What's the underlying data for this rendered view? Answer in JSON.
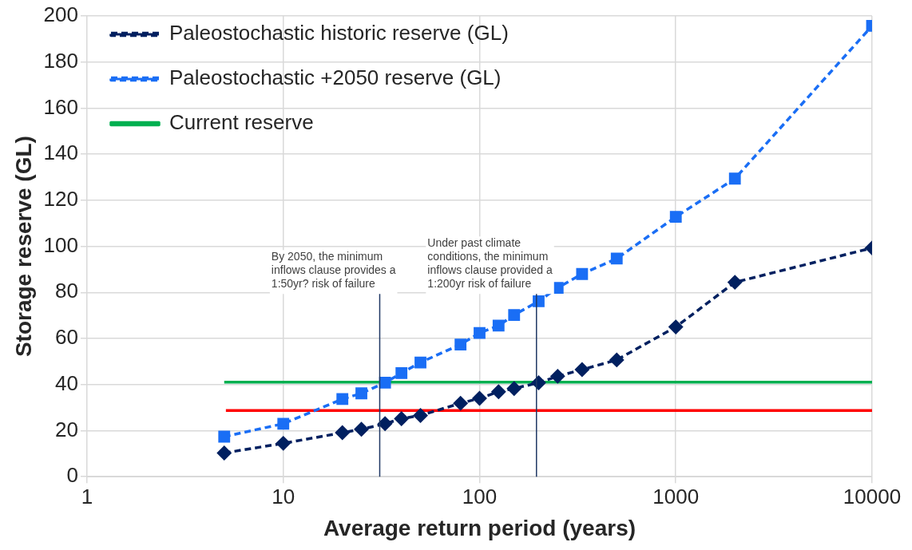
{
  "chart_data": {
    "type": "line",
    "xlabel": "Average return period (years)",
    "ylabel": "Storage reserve (GL)",
    "log": "x",
    "xlim": [
      1,
      10000
    ],
    "xticks": [
      1,
      10,
      100,
      1000,
      10000
    ],
    "ylim": [
      0,
      200
    ],
    "yticks": [
      0,
      20,
      40,
      60,
      80,
      100,
      120,
      140,
      160,
      180,
      200
    ],
    "grid": true,
    "legend": "top left",
    "series": [
      {
        "name": "Paleostochastic historic reserve (GL)",
        "color": "#002060",
        "marker": "diamond",
        "line_style": "dashed",
        "x": [
          5,
          10,
          20,
          25,
          33,
          40,
          50,
          80,
          100,
          125,
          150,
          200,
          250,
          333,
          500,
          1000,
          2000,
          10000
        ],
        "values": [
          10.3,
          14.5,
          19.1,
          20.6,
          23.0,
          25.2,
          26.6,
          31.9,
          34.0,
          36.9,
          38.3,
          40.8,
          43.6,
          46.5,
          50.7,
          65,
          84.4,
          99.3
        ]
      },
      {
        "name": "Paleostochastic +2050 reserve (GL)",
        "color": "#1a6ef5",
        "marker": "square",
        "line_style": "dashed",
        "x": [
          5,
          10,
          20,
          25,
          33,
          40,
          50,
          80,
          100,
          125,
          150,
          200,
          250,
          333,
          500,
          1000,
          2000,
          10000
        ],
        "values": [
          17.4,
          23,
          33.7,
          36.2,
          40.8,
          45,
          49.6,
          57.4,
          62.4,
          65.6,
          70.2,
          76.2,
          82,
          88,
          94.7,
          112.8,
          129.4,
          195.7
        ]
      },
      {
        "name": "Current reserve",
        "color": "#00b050",
        "marker": "none",
        "line_style": "solid",
        "x": [
          5,
          10000
        ],
        "values": [
          41,
          41
        ]
      },
      {
        "color": "#ff0000",
        "marker": "none",
        "line_style": "solid",
        "x": [
          5.1,
          10000
        ],
        "values": [
          28.7,
          28.7
        ]
      }
    ],
    "ref_lines": [
      {
        "axis": "x",
        "value": 31,
        "color": "#1f3864"
      },
      {
        "axis": "x",
        "value": 195,
        "color": "#1f3864"
      }
    ],
    "annotations": [
      {
        "text": "By 2050, the minimum inflows clause provides a 1:50yr? risk of failure",
        "x": 31,
        "y": 80
      },
      {
        "text": "Under past climate conditions, the minimum inflows clause provided a 1:200yr risk of failure",
        "x": 195,
        "y": 80
      }
    ]
  }
}
